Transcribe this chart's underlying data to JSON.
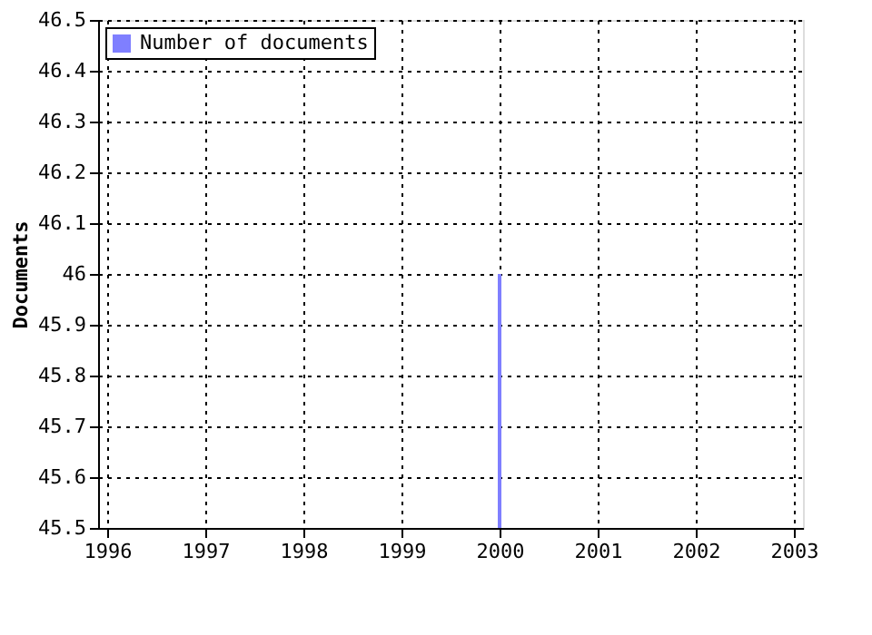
{
  "chart_data": {
    "type": "bar",
    "ylabel": "Documents",
    "x": [
      2000
    ],
    "series": [
      {
        "name": "Number of documents",
        "color": "#7f7fff",
        "values": [
          46
        ]
      }
    ],
    "xlim": [
      1996,
      2003
    ],
    "xticks": [
      1996,
      1997,
      1998,
      1999,
      2000,
      2001,
      2002,
      2003
    ],
    "ylim": [
      45.5,
      46.5
    ],
    "yticks": [
      45.5,
      45.6,
      45.7,
      45.8,
      45.9,
      46,
      46.1,
      46.2,
      46.3,
      46.4,
      46.5
    ],
    "grid": true,
    "legend": "top left"
  }
}
